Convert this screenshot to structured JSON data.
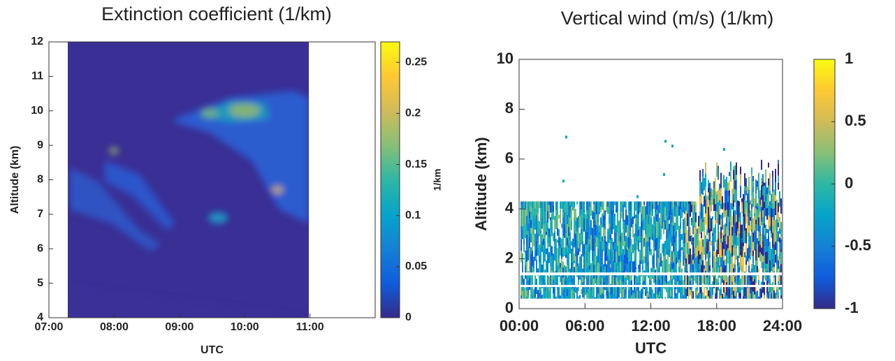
{
  "chart_data": [
    {
      "type": "heatmap",
      "title": "Extinction coefficient (1/km)",
      "xlabel": "UTC",
      "ylabel": "Altitude (km)",
      "xlim": [
        7,
        12
      ],
      "xticks": [
        {
          "value": 7,
          "label": "07:00"
        },
        {
          "value": 8,
          "label": "08:00"
        },
        {
          "value": 9,
          "label": "09:00"
        },
        {
          "value": 10,
          "label": "10:00"
        },
        {
          "value": 11,
          "label": "11:00"
        }
      ],
      "ylim": [
        4,
        12
      ],
      "yticks": [
        4,
        5,
        6,
        7,
        8,
        9,
        10,
        11,
        12
      ],
      "colorbar": {
        "label": "1/km",
        "clim": [
          0,
          0.27
        ],
        "ticks": [
          0,
          0.05,
          0.1,
          0.15,
          0.2,
          0.25
        ]
      },
      "colormap": [
        "#352a87",
        "#0f5cdd",
        "#1481d6",
        "#06a4ca",
        "#2eb7a4",
        "#87bf77",
        "#d1bb59",
        "#fec832",
        "#f9fb0e"
      ]
    },
    {
      "type": "heatmap",
      "title": "Vertical wind (m/s) (1/km)",
      "xlabel": "UTC",
      "ylabel": "Altitude (km)",
      "xlim": [
        0,
        24
      ],
      "xticks": [
        {
          "value": 0,
          "label": "00:00"
        },
        {
          "value": 6,
          "label": "06:00"
        },
        {
          "value": 12,
          "label": "12:00"
        },
        {
          "value": 18,
          "label": "18:00"
        },
        {
          "value": 24,
          "label": "24:00"
        }
      ],
      "ylim": [
        0,
        10
      ],
      "yticks": [
        0,
        2,
        4,
        6,
        8,
        10
      ],
      "colorbar": {
        "clim": [
          -1,
          1
        ],
        "ticks": [
          -1,
          -0.5,
          0,
          0.5,
          1
        ]
      },
      "colormap": [
        "#352a87",
        "#0f5cdd",
        "#1481d6",
        "#06a4ca",
        "#2eb7a4",
        "#87bf77",
        "#d1bb59",
        "#fec832",
        "#f9fb0e"
      ]
    }
  ]
}
